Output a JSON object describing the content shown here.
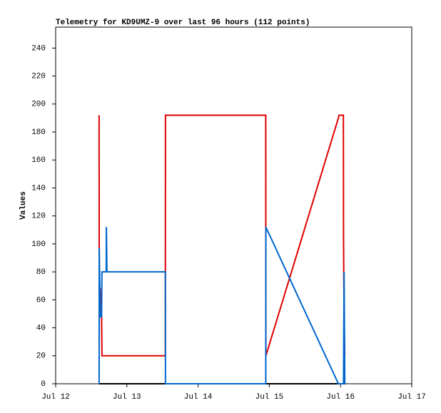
{
  "chart_data": {
    "type": "line",
    "title": "Telemetry for KD9UMZ-9 over last 96 hours (112 points)",
    "y_label": "Values",
    "x": [
      0.61,
      0.612,
      0.625,
      0.645,
      0.65,
      0.71,
      0.712,
      0.72,
      1.54,
      1.542,
      2.95,
      2.952,
      3.97,
      3.98,
      4.04,
      4.042,
      4.05,
      4.06
    ],
    "xlim": [
      0,
      5
    ],
    "xticks": [
      {
        "value": 0,
        "label": "Jul 12"
      },
      {
        "value": 1,
        "label": "Jul 13"
      },
      {
        "value": 2,
        "label": "Jul 14"
      },
      {
        "value": 3,
        "label": "Jul 15"
      },
      {
        "value": 4,
        "label": "Jul 16"
      },
      {
        "value": 5,
        "label": "Jul 17"
      }
    ],
    "ylim": [
      0,
      255
    ],
    "yticks": [
      0,
      20,
      40,
      60,
      80,
      100,
      120,
      140,
      160,
      180,
      200,
      220,
      240
    ],
    "series": [
      {
        "color": "#000000",
        "values": [
          0,
          0,
          0,
          0,
          0,
          0,
          0,
          0,
          0,
          0,
          0,
          0,
          0,
          0,
          0,
          0,
          0,
          0
        ]
      },
      {
        "color": "#e00000",
        "values": [
          192,
          68,
          68,
          48,
          20,
          20,
          20,
          20,
          20,
          192,
          192,
          20,
          190,
          192,
          192,
          106,
          45,
          20
        ]
      },
      {
        "color": "#0066cc",
        "values": [
          0,
          97,
          48,
          48,
          80,
          80,
          112,
          80,
          80,
          0,
          0,
          112,
          0,
          0,
          0,
          0,
          80,
          0
        ]
      }
    ]
  }
}
